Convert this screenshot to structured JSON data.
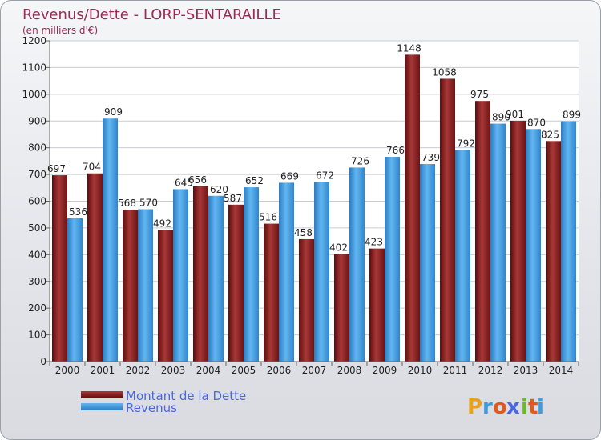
{
  "chart_data": {
    "type": "bar",
    "title": "Revenus/Dette - LORP-SENTARAILLE",
    "subtitle": "(en milliers d'€)",
    "categories": [
      "2000",
      "2001",
      "2002",
      "2003",
      "2004",
      "2005",
      "2006",
      "2007",
      "2008",
      "2009",
      "2010",
      "2011",
      "2012",
      "2013",
      "2014"
    ],
    "series": [
      {
        "name": "Montant de la Dette",
        "color": "#8b1c1c",
        "values": [
          697,
          704,
          568,
          492,
          656,
          587,
          516,
          458,
          402,
          423,
          1148,
          1058,
          975,
          901,
          825
        ]
      },
      {
        "name": "Revenus",
        "color": "#3d9be0",
        "values": [
          536,
          909,
          570,
          645,
          620,
          652,
          669,
          672,
          726,
          766,
          739,
          792,
          890,
          870,
          899
        ]
      }
    ],
    "ylim": [
      0,
      1200
    ],
    "yticks": [
      0,
      100,
      200,
      300,
      400,
      500,
      600,
      700,
      800,
      900,
      1000,
      1100,
      1200
    ],
    "grid": true,
    "legend": "bottom-left"
  },
  "logo": {
    "text": "Proxiti",
    "letters": [
      "P",
      "r",
      "o",
      "x",
      "i",
      "t",
      "i"
    ],
    "colors": [
      "#e8a020",
      "#3d9be0",
      "#e05a20",
      "#4a66e0",
      "#6bb830",
      "#e05a20",
      "#3d9be0"
    ]
  }
}
